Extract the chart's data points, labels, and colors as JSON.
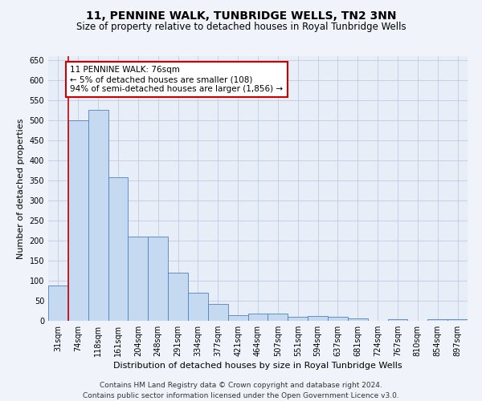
{
  "title": "11, PENNINE WALK, TUNBRIDGE WELLS, TN2 3NN",
  "subtitle": "Size of property relative to detached houses in Royal Tunbridge Wells",
  "xlabel": "Distribution of detached houses by size in Royal Tunbridge Wells",
  "ylabel": "Number of detached properties",
  "categories": [
    "31sqm",
    "74sqm",
    "118sqm",
    "161sqm",
    "204sqm",
    "248sqm",
    "291sqm",
    "334sqm",
    "377sqm",
    "421sqm",
    "464sqm",
    "507sqm",
    "551sqm",
    "594sqm",
    "637sqm",
    "681sqm",
    "724sqm",
    "767sqm",
    "810sqm",
    "854sqm",
    "897sqm"
  ],
  "values": [
    88,
    500,
    527,
    358,
    211,
    211,
    120,
    70,
    42,
    15,
    18,
    18,
    10,
    12,
    10,
    6,
    1,
    5,
    1,
    4,
    4
  ],
  "bar_color": "#c5d9f1",
  "bar_edge_color": "#4f81bd",
  "highlight_line_color": "#cc0000",
  "annotation_line1": "11 PENNINE WALK: 76sqm",
  "annotation_line2": "← 5% of detached houses are smaller (108)",
  "annotation_line3": "94% of semi-detached houses are larger (1,856) →",
  "annotation_box_color": "#ffffff",
  "annotation_border_color": "#cc0000",
  "ylim": [
    0,
    660
  ],
  "yticks": [
    0,
    50,
    100,
    150,
    200,
    250,
    300,
    350,
    400,
    450,
    500,
    550,
    600,
    650
  ],
  "footer_line1": "Contains HM Land Registry data © Crown copyright and database right 2024.",
  "footer_line2": "Contains public sector information licensed under the Open Government Licence v3.0.",
  "background_color": "#f0f4fa",
  "plot_background": "#e8eef8",
  "grid_color": "#c0cce0",
  "title_fontsize": 10,
  "subtitle_fontsize": 8.5,
  "axis_label_fontsize": 8,
  "tick_fontsize": 7,
  "annotation_fontsize": 7.5,
  "footer_fontsize": 6.5
}
